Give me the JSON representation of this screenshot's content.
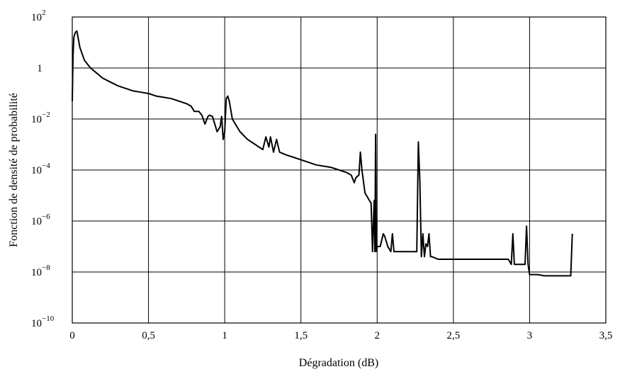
{
  "chart_data": {
    "type": "line",
    "title": "",
    "xlabel": "Dégradation (dB)",
    "ylabel": "Fonction  de densité de probabilité",
    "xlim": [
      0,
      3.5
    ],
    "ylim_exponent": [
      -10,
      2
    ],
    "y_scale": "log",
    "grid": true,
    "x_tick_labels": [
      "0",
      "0,5",
      "1",
      "1,5",
      "2",
      "2,5",
      "3",
      "3,5"
    ],
    "y_tick_labels": [
      {
        "base": "10",
        "exp": "−10"
      },
      {
        "base": "10",
        "exp": "−8"
      },
      {
        "base": "10",
        "exp": "−6"
      },
      {
        "base": "10",
        "exp": "−4"
      },
      {
        "base": "10",
        "exp": "−2"
      },
      {
        "base": "1",
        "exp": ""
      },
      {
        "base": "10",
        "exp": "2"
      }
    ],
    "series": [
      {
        "x": [
          0.0,
          0.005,
          0.01,
          0.02,
          0.03,
          0.05,
          0.08,
          0.12,
          0.16,
          0.2,
          0.25,
          0.3,
          0.35,
          0.4,
          0.45,
          0.5,
          0.55,
          0.6,
          0.65,
          0.7,
          0.75,
          0.78,
          0.8,
          0.83,
          0.85,
          0.87,
          0.89,
          0.9,
          0.92,
          0.95,
          0.97,
          0.98,
          0.99,
          1.0,
          1.01,
          1.02,
          1.03,
          1.05,
          1.1,
          1.15,
          1.2,
          1.25,
          1.27,
          1.29,
          1.3,
          1.32,
          1.34,
          1.36,
          1.4,
          1.45,
          1.5,
          1.55,
          1.6,
          1.65,
          1.7,
          1.75,
          1.8,
          1.83,
          1.85,
          1.86,
          1.88,
          1.89,
          1.9,
          1.92,
          1.94,
          1.95,
          1.96,
          1.97,
          1.98,
          1.985,
          1.99,
          1.995,
          2.0,
          2.02,
          2.04,
          2.05,
          2.07,
          2.08,
          2.09,
          2.1,
          2.11,
          2.12,
          2.2,
          2.26,
          2.27,
          2.28,
          2.29,
          2.3,
          2.31,
          2.32,
          2.33,
          2.34,
          2.35,
          2.36,
          2.4,
          2.5,
          2.6,
          2.65,
          2.7,
          2.8,
          2.86,
          2.88,
          2.89,
          2.9,
          2.95,
          2.97,
          2.98,
          2.99,
          3.0,
          3.05,
          3.1,
          3.2,
          3.27,
          3.28
        ],
        "y_log10": [
          -1.3,
          0.5,
          1.2,
          1.4,
          1.45,
          0.8,
          0.3,
          0.0,
          -0.2,
          -0.4,
          -0.55,
          -0.7,
          -0.8,
          -0.9,
          -0.95,
          -1.0,
          -1.1,
          -1.15,
          -1.2,
          -1.3,
          -1.4,
          -1.5,
          -1.7,
          -1.7,
          -1.85,
          -2.2,
          -1.9,
          -1.85,
          -1.9,
          -2.5,
          -2.3,
          -1.9,
          -2.8,
          -2.5,
          -1.2,
          -1.1,
          -1.3,
          -2.0,
          -2.5,
          -2.8,
          -3.0,
          -3.2,
          -2.7,
          -3.1,
          -2.7,
          -3.3,
          -2.8,
          -3.3,
          -3.4,
          -3.5,
          -3.6,
          -3.7,
          -3.8,
          -3.85,
          -3.9,
          -4.0,
          -4.1,
          -4.2,
          -4.5,
          -4.3,
          -4.2,
          -3.3,
          -4.0,
          -4.9,
          -5.1,
          -5.2,
          -5.3,
          -7.2,
          -5.2,
          -7.2,
          -2.6,
          -7.2,
          -7.0,
          -7.0,
          -6.5,
          -6.6,
          -7.0,
          -7.1,
          -7.2,
          -6.5,
          -7.2,
          -7.2,
          -7.2,
          -7.2,
          -2.9,
          -4.4,
          -7.4,
          -6.5,
          -7.4,
          -6.9,
          -7.0,
          -6.5,
          -7.4,
          -7.4,
          -7.5,
          -7.5,
          -7.5,
          -7.5,
          -7.5,
          -7.5,
          -7.5,
          -7.7,
          -6.5,
          -7.7,
          -7.7,
          -7.7,
          -6.2,
          -7.7,
          -8.1,
          -8.1,
          -8.15,
          -8.15,
          -8.15,
          -6.5
        ]
      }
    ]
  }
}
